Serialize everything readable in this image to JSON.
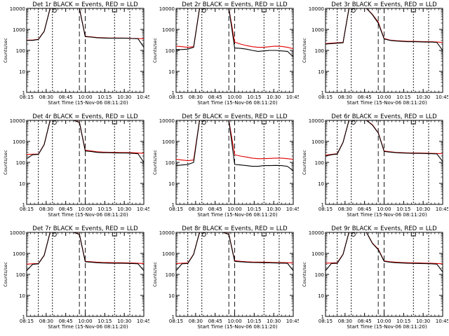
{
  "colors": {
    "events": "#000000",
    "lld": "#e00000",
    "axis": "#000000",
    "background": "#ffffff"
  },
  "common": {
    "ylabel": "Counts/sec",
    "xlabel": "Start Time (15-Nov-06 08:11:20)",
    "xticks": [
      "08:15",
      "08:30",
      "08:45",
      "10:00",
      "10:15",
      "10:30",
      "10:45"
    ],
    "yticks": [
      "1",
      "10",
      "100",
      "1000",
      "10000"
    ]
  },
  "chart_data": [
    {
      "type": "line",
      "title": "Det 1r BLACK = Events, RED = LLD",
      "xlabel": "Start Time (15-Nov-06 08:11:20)",
      "ylabel": "Counts/sec",
      "y_scale": "log",
      "ylim": [
        1,
        10000
      ],
      "x": [
        0,
        5,
        10,
        15,
        20,
        25,
        30,
        35,
        40,
        45,
        50,
        55,
        60,
        65,
        70,
        75,
        80,
        85,
        90,
        95,
        100
      ],
      "series": [
        {
          "name": "Events",
          "values": [
            300,
            300,
            330,
            800,
            10000,
            10000,
            10000,
            10000,
            10000,
            10000,
            450,
            430,
            400,
            390,
            380,
            380,
            380,
            380,
            370,
            360,
            140
          ]
        },
        {
          "name": "LLD",
          "values": [
            310,
            310,
            340,
            820,
            10000,
            10000,
            10000,
            10000,
            10000,
            10000,
            470,
            440,
            410,
            400,
            390,
            390,
            390,
            385,
            375,
            370,
            360
          ]
        }
      ]
    },
    {
      "type": "line",
      "title": "Det 2r BLACK = Events, RED = LLD",
      "xlabel": "Start Time (15-Nov-06 08:11:20)",
      "ylabel": "Counts/sec",
      "y_scale": "log",
      "ylim": [
        1,
        10000
      ],
      "x": [
        0,
        5,
        10,
        15,
        20,
        25,
        30,
        35,
        40,
        45,
        50,
        55,
        60,
        65,
        70,
        75,
        80,
        85,
        90,
        95,
        100
      ],
      "series": [
        {
          "name": "Events",
          "values": [
            110,
            110,
            115,
            140,
            10000,
            10000,
            10000,
            10000,
            10000,
            10000,
            130,
            125,
            115,
            100,
            90,
            95,
            100,
            100,
            95,
            90,
            50
          ]
        },
        {
          "name": "LLD",
          "values": [
            160,
            150,
            140,
            150,
            10000,
            10000,
            10000,
            10000,
            10000,
            10000,
            250,
            200,
            170,
            150,
            140,
            140,
            150,
            160,
            155,
            140,
            120
          ]
        }
      ]
    },
    {
      "type": "line",
      "title": "Det 3r BLACK = Events, RED = LLD",
      "xlabel": "Start Time (15-Nov-06 08:11:20)",
      "ylabel": "Counts/sec",
      "y_scale": "log",
      "ylim": [
        1,
        10000
      ],
      "x": [
        0,
        5,
        10,
        15,
        20,
        25,
        30,
        35,
        40,
        45,
        50,
        55,
        60,
        65,
        70,
        75,
        80,
        85,
        90,
        95,
        100
      ],
      "series": [
        {
          "name": "Events",
          "values": [
            200,
            210,
            220,
            230,
            10000,
            10000,
            10000,
            10000,
            5000,
            2000,
            350,
            300,
            280,
            270,
            260,
            260,
            255,
            250,
            250,
            240,
            100
          ]
        },
        {
          "name": "LLD",
          "values": [
            210,
            220,
            230,
            240,
            10000,
            10000,
            10000,
            10000,
            5200,
            2200,
            370,
            310,
            290,
            280,
            270,
            270,
            265,
            260,
            260,
            250,
            240
          ]
        }
      ]
    },
    {
      "type": "line",
      "title": "Det 4r BLACK = Events, RED = LLD",
      "xlabel": "Start Time (15-Nov-06 08:11:20)",
      "ylabel": "Counts/sec",
      "y_scale": "log",
      "ylim": [
        1,
        10000
      ],
      "x": [
        0,
        5,
        10,
        15,
        20,
        25,
        30,
        35,
        40,
        45,
        50,
        55,
        60,
        65,
        70,
        75,
        80,
        85,
        90,
        95,
        100
      ],
      "series": [
        {
          "name": "Events",
          "values": [
            150,
            230,
            240,
            700,
            10000,
            10000,
            10000,
            10000,
            10000,
            8000,
            350,
            330,
            300,
            290,
            290,
            285,
            280,
            280,
            270,
            260,
            100
          ]
        },
        {
          "name": "LLD",
          "values": [
            240,
            245,
            250,
            720,
            10000,
            10000,
            10000,
            10000,
            10000,
            8200,
            380,
            350,
            320,
            310,
            305,
            300,
            295,
            295,
            290,
            280,
            270
          ]
        }
      ]
    },
    {
      "type": "line",
      "title": "Det 5r BLACK = Events, RED = LLD",
      "xlabel": "Start Time (15-Nov-06 08:11:20)",
      "ylabel": "Counts/sec",
      "y_scale": "log",
      "ylim": [
        1,
        10000
      ],
      "x": [
        0,
        5,
        10,
        15,
        20,
        25,
        30,
        35,
        40,
        45,
        50,
        55,
        60,
        65,
        70,
        75,
        80,
        85,
        90,
        95,
        100
      ],
      "series": [
        {
          "name": "Events",
          "values": [
            70,
            75,
            80,
            100,
            10000,
            10000,
            10000,
            10000,
            10000,
            10000,
            80,
            75,
            70,
            65,
            65,
            70,
            70,
            72,
            70,
            65,
            40
          ]
        },
        {
          "name": "LLD",
          "values": [
            140,
            130,
            120,
            130,
            10000,
            10000,
            10000,
            10000,
            10000,
            10000,
            230,
            200,
            180,
            160,
            150,
            150,
            155,
            160,
            160,
            150,
            140
          ]
        }
      ]
    },
    {
      "type": "line",
      "title": "Det 6r BLACK = Events, RED = LLD",
      "xlabel": "Start Time (15-Nov-06 08:11:20)",
      "ylabel": "Counts/sec",
      "y_scale": "log",
      "ylim": [
        1,
        10000
      ],
      "x": [
        0,
        5,
        10,
        15,
        20,
        25,
        30,
        35,
        40,
        45,
        50,
        55,
        60,
        65,
        70,
        75,
        80,
        85,
        90,
        95,
        100
      ],
      "series": [
        {
          "name": "Events",
          "values": [
            200,
            230,
            250,
            900,
            10000,
            10000,
            10000,
            10000,
            6000,
            2500,
            330,
            310,
            290,
            280,
            275,
            270,
            270,
            265,
            260,
            255,
            110
          ]
        },
        {
          "name": "LLD",
          "values": [
            220,
            240,
            260,
            920,
            10000,
            10000,
            10000,
            10000,
            6200,
            2600,
            350,
            320,
            300,
            290,
            285,
            280,
            280,
            275,
            270,
            265,
            260
          ]
        }
      ]
    },
    {
      "type": "line",
      "title": "Det 7r BLACK = Events, RED = LLD",
      "xlabel": "Start Time (15-Nov-06 08:11:20)",
      "ylabel": "Counts/sec",
      "y_scale": "log",
      "ylim": [
        1,
        10000
      ],
      "x": [
        0,
        5,
        10,
        15,
        20,
        25,
        30,
        35,
        40,
        45,
        50,
        55,
        60,
        65,
        70,
        75,
        80,
        85,
        90,
        95,
        100
      ],
      "series": [
        {
          "name": "Events",
          "values": [
            150,
            300,
            320,
            800,
            10000,
            10000,
            10000,
            10000,
            10000,
            8000,
            400,
            380,
            360,
            350,
            345,
            340,
            340,
            335,
            330,
            320,
            150
          ]
        },
        {
          "name": "LLD",
          "values": [
            310,
            320,
            330,
            820,
            10000,
            10000,
            10000,
            10000,
            10000,
            8200,
            420,
            400,
            380,
            370,
            365,
            360,
            360,
            355,
            350,
            340,
            330
          ]
        }
      ]
    },
    {
      "type": "line",
      "title": "Det 8r BLACK = Events, RED = LLD",
      "xlabel": "Start Time (15-Nov-06 08:11:20)",
      "ylabel": "Counts/sec",
      "y_scale": "log",
      "ylim": [
        1,
        10000
      ],
      "x": [
        0,
        5,
        10,
        15,
        20,
        25,
        30,
        35,
        40,
        45,
        50,
        55,
        60,
        65,
        70,
        75,
        80,
        85,
        90,
        95,
        100
      ],
      "series": [
        {
          "name": "Events",
          "values": [
            150,
            320,
            330,
            900,
            10000,
            10000,
            10000,
            10000,
            10000,
            8000,
            420,
            400,
            380,
            370,
            365,
            360,
            355,
            350,
            345,
            340,
            150
          ]
        },
        {
          "name": "LLD",
          "values": [
            330,
            340,
            350,
            920,
            10000,
            10000,
            10000,
            10000,
            10000,
            8200,
            450,
            420,
            400,
            390,
            385,
            380,
            375,
            370,
            365,
            360,
            350
          ]
        }
      ]
    },
    {
      "type": "line",
      "title": "Det 9r BLACK = Events, RED = LLD",
      "xlabel": "Start Time (15-Nov-06 08:11:20)",
      "ylabel": "Counts/sec",
      "y_scale": "log",
      "ylim": [
        1,
        10000
      ],
      "x": [
        0,
        5,
        10,
        15,
        20,
        25,
        30,
        35,
        40,
        45,
        50,
        55,
        60,
        65,
        70,
        75,
        80,
        85,
        90,
        95,
        100
      ],
      "series": [
        {
          "name": "Events",
          "values": [
            150,
            330,
            340,
            900,
            10000,
            10000,
            10000,
            10000,
            3000,
            1500,
            420,
            380,
            360,
            350,
            340,
            335,
            330,
            325,
            320,
            310,
            130
          ]
        },
        {
          "name": "LLD",
          "values": [
            340,
            350,
            360,
            920,
            10000,
            10000,
            10000,
            10000,
            3100,
            1600,
            440,
            400,
            380,
            370,
            360,
            355,
            350,
            345,
            340,
            330,
            320
          ]
        }
      ]
    }
  ]
}
